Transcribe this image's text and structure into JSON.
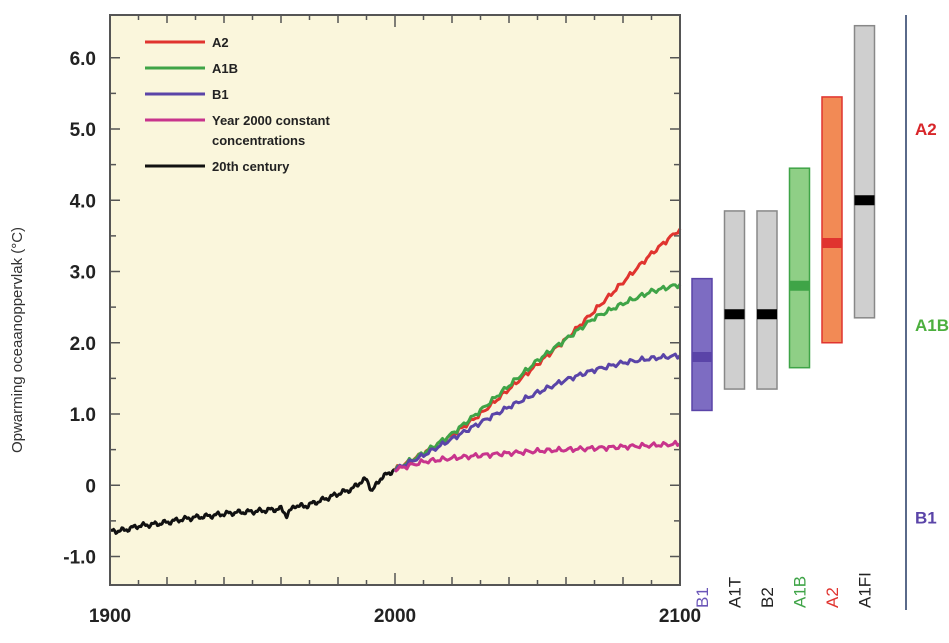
{
  "chart_data": {
    "type": "line",
    "ylabel": "Opwarming oceaanoppervlak (°C)",
    "xlim": [
      1900,
      2100
    ],
    "ylim": [
      -1.4,
      6.6
    ],
    "x_ticks": [
      "1900",
      "2000",
      "2100"
    ],
    "y_ticks": [
      {
        "value": 6.0,
        "label": "6.0"
      },
      {
        "value": 5.0,
        "label": "5.0"
      },
      {
        "value": 4.0,
        "label": "4.0"
      },
      {
        "value": 3.0,
        "label": "3.0"
      },
      {
        "value": 2.0,
        "label": "2.0"
      },
      {
        "value": 1.0,
        "label": "1.0"
      },
      {
        "value": 0,
        "label": "0"
      },
      {
        "value": -1.0,
        "label": "-1.0"
      }
    ],
    "legend_position": "top-left",
    "legend": [
      {
        "label": "A2",
        "color": "#e0342f"
      },
      {
        "label": "A1B",
        "color": "#3fa447"
      },
      {
        "label": "B1",
        "color": "#5a44a8"
      },
      {
        "label": "Year 2000 constant",
        "label2": "concentrations",
        "color": "#c8348c"
      },
      {
        "label": "20th century",
        "color": "#111111"
      }
    ],
    "series": [
      {
        "name": "20th century",
        "color": "#111111",
        "x": [
          1900,
          1905,
          1910,
          1915,
          1920,
          1925,
          1930,
          1935,
          1940,
          1945,
          1950,
          1955,
          1960,
          1962,
          1965,
          1968,
          1970,
          1975,
          1980,
          1985,
          1988,
          1990,
          1992,
          1995,
          2000
        ],
        "y": [
          -0.65,
          -0.63,
          -0.57,
          -0.55,
          -0.52,
          -0.48,
          -0.45,
          -0.43,
          -0.4,
          -0.38,
          -0.37,
          -0.35,
          -0.33,
          -0.42,
          -0.28,
          -0.3,
          -0.27,
          -0.2,
          -0.12,
          -0.05,
          0.05,
          0.08,
          -0.08,
          0.1,
          0.22
        ]
      },
      {
        "name": "A2",
        "color": "#e0342f",
        "x": [
          2000,
          2010,
          2020,
          2030,
          2040,
          2050,
          2060,
          2070,
          2080,
          2090,
          2100
        ],
        "y": [
          0.22,
          0.45,
          0.7,
          1.0,
          1.35,
          1.7,
          2.05,
          2.45,
          2.85,
          3.25,
          3.6
        ]
      },
      {
        "name": "A1B",
        "color": "#3fa447",
        "x": [
          2000,
          2010,
          2020,
          2030,
          2040,
          2050,
          2060,
          2070,
          2080,
          2090,
          2100
        ],
        "y": [
          0.22,
          0.45,
          0.72,
          1.05,
          1.4,
          1.75,
          2.05,
          2.35,
          2.55,
          2.72,
          2.82
        ]
      },
      {
        "name": "B1",
        "color": "#5a44a8",
        "x": [
          2000,
          2010,
          2020,
          2030,
          2040,
          2050,
          2060,
          2070,
          2080,
          2090,
          2100
        ],
        "y": [
          0.22,
          0.42,
          0.65,
          0.88,
          1.1,
          1.3,
          1.48,
          1.62,
          1.72,
          1.78,
          1.82
        ]
      },
      {
        "name": "Year 2000 constant concentrations",
        "color": "#c8348c",
        "x": [
          2000,
          2010,
          2020,
          2030,
          2040,
          2050,
          2060,
          2070,
          2080,
          2090,
          2100
        ],
        "y": [
          0.22,
          0.33,
          0.38,
          0.42,
          0.45,
          0.48,
          0.5,
          0.52,
          0.54,
          0.56,
          0.58
        ]
      }
    ],
    "ranges": [
      {
        "label": "B1",
        "fill": "#7d6cc2",
        "stroke": "#5a44a8",
        "label_color": "#6a55b8",
        "low": 1.05,
        "high": 2.9,
        "best": 1.8,
        "best_color": "#5a44a8"
      },
      {
        "label": "A1T",
        "fill": "#cfcfcf",
        "stroke": "#888888",
        "label_color": "#222222",
        "low": 1.35,
        "high": 3.85,
        "best": 2.4,
        "best_color": "#000000"
      },
      {
        "label": "B2",
        "fill": "#cfcfcf",
        "stroke": "#888888",
        "label_color": "#222222",
        "low": 1.35,
        "high": 3.85,
        "best": 2.4,
        "best_color": "#000000"
      },
      {
        "label": "A1B",
        "fill": "#8fcf86",
        "stroke": "#3fa447",
        "label_color": "#3fa447",
        "low": 1.65,
        "high": 4.45,
        "best": 2.8,
        "best_color": "#3fa447"
      },
      {
        "label": "A2",
        "fill": "#f28a55",
        "stroke": "#e0342f",
        "label_color": "#e0342f",
        "low": 2.0,
        "high": 5.45,
        "best": 3.4,
        "best_color": "#e0342f"
      },
      {
        "label": "A1FI",
        "fill": "#cfcfcf",
        "stroke": "#888888",
        "label_color": "#222222",
        "low": 2.35,
        "high": 6.45,
        "best": 4.0,
        "best_color": "#000000"
      }
    ],
    "side_labels": [
      {
        "text": "A2",
        "value": 5.0,
        "color": "#d8262a"
      },
      {
        "text": "A1B",
        "value": 2.25,
        "color": "#4caf3e"
      },
      {
        "text": "B1",
        "value": -0.45,
        "color": "#5a44a8"
      }
    ]
  },
  "colors": {
    "plot_background": "#faf6dc",
    "frame": "#555555"
  }
}
